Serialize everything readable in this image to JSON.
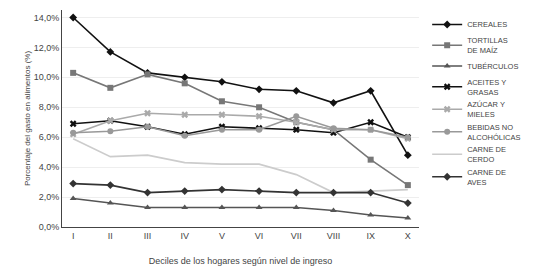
{
  "chart_data": {
    "type": "line",
    "categories": [
      "I",
      "II",
      "III",
      "IV",
      "V",
      "VI",
      "VII",
      "VIII",
      "IX",
      "X"
    ],
    "series": [
      {
        "name": "CEREALES",
        "color": "#111111",
        "marker": "diamond",
        "values": [
          14.0,
          11.7,
          10.3,
          10.0,
          9.7,
          9.2,
          9.1,
          8.3,
          9.1,
          4.8
        ]
      },
      {
        "name": "TORTILLAS\nDE MAÍZ",
        "color": "#777777",
        "marker": "square",
        "values": [
          10.3,
          9.3,
          10.2,
          9.6,
          8.4,
          8.0,
          7.0,
          6.5,
          4.5,
          2.8
        ]
      },
      {
        "name": "TUBÉRCULOS",
        "color": "#555555",
        "marker": "triangle-up",
        "values": [
          1.9,
          1.6,
          1.3,
          1.3,
          1.3,
          1.3,
          1.3,
          1.1,
          0.8,
          0.6
        ]
      },
      {
        "name": "ACEITES Y\nGRASAS",
        "color": "#111111",
        "marker": "x",
        "values": [
          6.9,
          7.1,
          6.7,
          6.2,
          6.7,
          6.6,
          6.5,
          6.3,
          7.0,
          6.0
        ]
      },
      {
        "name": "AZÚCAR Y\nMIELES",
        "color": "#aaaaaa",
        "marker": "x",
        "values": [
          6.2,
          7.1,
          7.6,
          7.5,
          7.5,
          7.4,
          7.0,
          6.5,
          6.5,
          5.9
        ]
      },
      {
        "name": "BEBIDAS NO\nALCOHÓLICAS",
        "color": "#999999",
        "marker": "circle",
        "values": [
          6.3,
          6.4,
          6.7,
          6.1,
          6.5,
          6.5,
          7.4,
          6.6,
          6.5,
          6.0
        ]
      },
      {
        "name": "CARNE DE\nCERDO",
        "color": "#cccccc",
        "marker": "none",
        "values": [
          5.9,
          4.7,
          4.8,
          4.3,
          4.2,
          4.2,
          3.5,
          2.3,
          2.4,
          2.5
        ]
      },
      {
        "name": "CARNE DE\nAVES",
        "color": "#333333",
        "marker": "diamond",
        "values": [
          2.9,
          2.8,
          2.3,
          2.4,
          2.5,
          2.4,
          2.3,
          2.3,
          2.3,
          1.6
        ]
      }
    ],
    "xlabel": "Deciles de los hogares según nivel de ingreso",
    "ylabel": "Porcentaje del gasto en alimentos (%)",
    "ylim": [
      0,
      14.5
    ],
    "yticks": [
      {
        "value": 0,
        "label": "0,0%"
      },
      {
        "value": 2,
        "label": "2,0%"
      },
      {
        "value": 4,
        "label": "4,0%"
      },
      {
        "value": 6,
        "label": "6,0%"
      },
      {
        "value": 8,
        "label": "8,0%"
      },
      {
        "value": 10,
        "label": "10,0%"
      },
      {
        "value": 12,
        "label": "12,0%"
      },
      {
        "value": 14,
        "label": "14,0%"
      }
    ],
    "grid": true,
    "legend": "upper right"
  }
}
